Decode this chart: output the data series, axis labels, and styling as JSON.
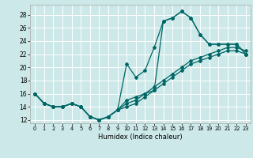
{
  "xlabel": "Humidex (Indice chaleur)",
  "bg_color": "#cce8e8",
  "grid_color": "#ffffff",
  "line_color": "#006666",
  "xlim": [
    -0.5,
    23.5
  ],
  "ylim": [
    11.5,
    29.5
  ],
  "yticks": [
    12,
    14,
    16,
    18,
    20,
    22,
    24,
    26,
    28
  ],
  "xticks": [
    0,
    1,
    2,
    3,
    4,
    5,
    6,
    7,
    8,
    9,
    10,
    11,
    12,
    13,
    14,
    15,
    16,
    17,
    18,
    19,
    20,
    21,
    22,
    23
  ],
  "hours": [
    0,
    1,
    2,
    3,
    4,
    5,
    6,
    7,
    8,
    9,
    10,
    11,
    12,
    13,
    14,
    15,
    16,
    17,
    18,
    19,
    20,
    21,
    22,
    23
  ],
  "line_max": [
    16.0,
    14.5,
    14.0,
    14.0,
    14.5,
    14.0,
    12.5,
    12.0,
    12.5,
    13.5,
    15.0,
    15.5,
    16.0,
    16.5,
    27.0,
    27.5,
    28.5,
    27.5,
    25.0,
    23.5,
    23.5,
    23.5,
    23.5,
    22.0
  ],
  "line_mid": [
    16.0,
    14.5,
    14.0,
    14.0,
    14.5,
    14.0,
    12.5,
    12.0,
    12.5,
    13.5,
    20.5,
    18.5,
    19.5,
    23.0,
    27.0,
    27.5,
    28.5,
    27.5,
    25.0,
    23.5,
    23.5,
    23.5,
    23.5,
    22.0
  ],
  "line_avg1": [
    16.0,
    14.5,
    14.0,
    14.0,
    14.5,
    14.0,
    12.5,
    12.0,
    12.5,
    13.5,
    14.5,
    15.0,
    16.0,
    17.0,
    18.0,
    19.0,
    20.0,
    21.0,
    21.5,
    22.0,
    22.5,
    23.0,
    23.0,
    22.5
  ],
  "line_avg2": [
    16.0,
    14.5,
    14.0,
    14.0,
    14.5,
    14.0,
    12.5,
    12.0,
    12.5,
    13.5,
    14.0,
    14.5,
    15.5,
    16.5,
    17.5,
    18.5,
    19.5,
    20.5,
    21.0,
    21.5,
    22.0,
    22.5,
    22.5,
    22.0
  ]
}
